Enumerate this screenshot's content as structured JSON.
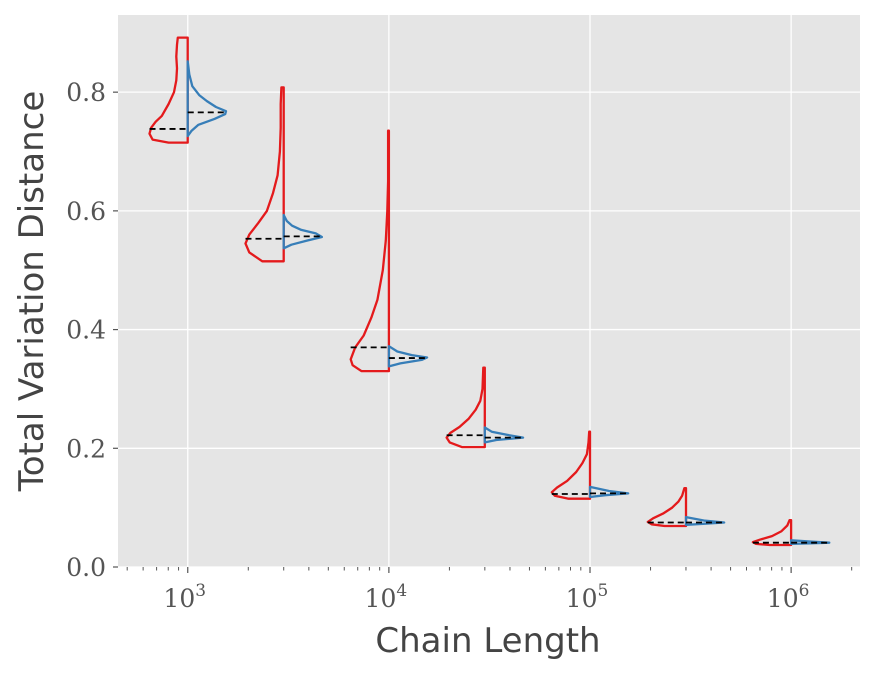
{
  "chart_data": {
    "type": "violin",
    "xlabel": "Chain Length",
    "ylabel": "Total Variation Distance",
    "xscale": "log",
    "xlim": [
      450,
      2200000
    ],
    "ylim": [
      0.0,
      0.93
    ],
    "grid": true,
    "background": "#e5e5e5",
    "colors": {
      "left_violin": "#e41a1c",
      "right_violin": "#377eb8",
      "median_line": "#000000"
    },
    "y_ticks": [
      0.0,
      0.2,
      0.4,
      0.6,
      0.8
    ],
    "y_tick_labels": [
      "0.0",
      "0.2",
      "0.4",
      "0.6",
      "0.8"
    ],
    "x_ticks": [
      1000,
      10000,
      100000,
      1000000
    ],
    "x_tick_labels": [
      {
        "base": "10",
        "exp": "3"
      },
      {
        "base": "10",
        "exp": "4"
      },
      {
        "base": "10",
        "exp": "5"
      },
      {
        "base": "10",
        "exp": "6"
      }
    ],
    "groups": [
      {
        "chain_length": 1000,
        "left": {
          "min": 0.715,
          "max": 0.892,
          "median": 0.738,
          "profile": [
            [
              0.715,
              0.5
            ],
            [
              0.72,
              0.92
            ],
            [
              0.73,
              1.0
            ],
            [
              0.74,
              0.96
            ],
            [
              0.75,
              0.84
            ],
            [
              0.76,
              0.68
            ],
            [
              0.78,
              0.5
            ],
            [
              0.8,
              0.36
            ],
            [
              0.82,
              0.3
            ],
            [
              0.84,
              0.28
            ],
            [
              0.86,
              0.3
            ],
            [
              0.88,
              0.28
            ],
            [
              0.892,
              0.26
            ]
          ]
        },
        "right": {
          "min": 0.726,
          "max": 0.852,
          "median": 0.766,
          "profile": [
            [
              0.726,
              0.0
            ],
            [
              0.735,
              0.1
            ],
            [
              0.745,
              0.28
            ],
            [
              0.755,
              0.7
            ],
            [
              0.763,
              0.98
            ],
            [
              0.768,
              1.0
            ],
            [
              0.775,
              0.74
            ],
            [
              0.785,
              0.5
            ],
            [
              0.795,
              0.3
            ],
            [
              0.81,
              0.12
            ],
            [
              0.83,
              0.04
            ],
            [
              0.852,
              0.0
            ]
          ]
        }
      },
      {
        "chain_length": 3000,
        "left": {
          "min": 0.515,
          "max": 0.808,
          "median": 0.553,
          "profile": [
            [
              0.515,
              0.56
            ],
            [
              0.53,
              0.9
            ],
            [
              0.545,
              1.0
            ],
            [
              0.56,
              0.9
            ],
            [
              0.58,
              0.66
            ],
            [
              0.6,
              0.44
            ],
            [
              0.63,
              0.28
            ],
            [
              0.66,
              0.16
            ],
            [
              0.7,
              0.1
            ],
            [
              0.74,
              0.08
            ],
            [
              0.78,
              0.08
            ],
            [
              0.808,
              0.06
            ]
          ]
        },
        "right": {
          "min": 0.537,
          "max": 0.593,
          "median": 0.557,
          "profile": [
            [
              0.537,
              0.0
            ],
            [
              0.543,
              0.2
            ],
            [
              0.55,
              0.62
            ],
            [
              0.556,
              1.0
            ],
            [
              0.562,
              0.84
            ],
            [
              0.568,
              0.46
            ],
            [
              0.575,
              0.22
            ],
            [
              0.583,
              0.08
            ],
            [
              0.593,
              0.0
            ]
          ]
        }
      },
      {
        "chain_length": 10000,
        "left": {
          "min": 0.33,
          "max": 0.735,
          "median": 0.37,
          "profile": [
            [
              0.33,
              0.72
            ],
            [
              0.34,
              0.95
            ],
            [
              0.35,
              1.0
            ],
            [
              0.37,
              0.88
            ],
            [
              0.39,
              0.66
            ],
            [
              0.42,
              0.46
            ],
            [
              0.45,
              0.3
            ],
            [
              0.5,
              0.16
            ],
            [
              0.55,
              0.08
            ],
            [
              0.6,
              0.04
            ],
            [
              0.65,
              0.02
            ],
            [
              0.7,
              0.02
            ],
            [
              0.735,
              0.02
            ]
          ]
        },
        "right": {
          "min": 0.338,
          "max": 0.372,
          "median": 0.352,
          "profile": [
            [
              0.338,
              0.0
            ],
            [
              0.343,
              0.3
            ],
            [
              0.349,
              0.86
            ],
            [
              0.353,
              1.0
            ],
            [
              0.357,
              0.6
            ],
            [
              0.363,
              0.22
            ],
            [
              0.372,
              0.0
            ]
          ]
        }
      },
      {
        "chain_length": 30000,
        "left": {
          "min": 0.202,
          "max": 0.336,
          "median": 0.222,
          "profile": [
            [
              0.202,
              0.6
            ],
            [
              0.21,
              0.92
            ],
            [
              0.218,
              1.0
            ],
            [
              0.226,
              0.9
            ],
            [
              0.236,
              0.66
            ],
            [
              0.25,
              0.42
            ],
            [
              0.265,
              0.24
            ],
            [
              0.28,
              0.12
            ],
            [
              0.3,
              0.06
            ],
            [
              0.336,
              0.04
            ]
          ]
        },
        "right": {
          "min": 0.21,
          "max": 0.235,
          "median": 0.218,
          "profile": [
            [
              0.21,
              0.0
            ],
            [
              0.214,
              0.3
            ],
            [
              0.218,
              1.0
            ],
            [
              0.222,
              0.64
            ],
            [
              0.228,
              0.18
            ],
            [
              0.235,
              0.0
            ]
          ]
        }
      },
      {
        "chain_length": 100000,
        "left": {
          "min": 0.115,
          "max": 0.228,
          "median": 0.123,
          "profile": [
            [
              0.115,
              0.56
            ],
            [
              0.12,
              0.92
            ],
            [
              0.126,
              1.0
            ],
            [
              0.134,
              0.86
            ],
            [
              0.145,
              0.6
            ],
            [
              0.16,
              0.36
            ],
            [
              0.175,
              0.2
            ],
            [
              0.19,
              0.08
            ],
            [
              0.21,
              0.04
            ],
            [
              0.228,
              0.02
            ]
          ]
        },
        "right": {
          "min": 0.118,
          "max": 0.135,
          "median": 0.124,
          "profile": [
            [
              0.118,
              0.0
            ],
            [
              0.121,
              0.4
            ],
            [
              0.124,
              1.0
            ],
            [
              0.128,
              0.5
            ],
            [
              0.135,
              0.0
            ]
          ]
        }
      },
      {
        "chain_length": 300000,
        "left": {
          "min": 0.069,
          "max": 0.133,
          "median": 0.075,
          "profile": [
            [
              0.069,
              0.56
            ],
            [
              0.072,
              0.9
            ],
            [
              0.076,
              1.0
            ],
            [
              0.082,
              0.86
            ],
            [
              0.09,
              0.6
            ],
            [
              0.1,
              0.36
            ],
            [
              0.11,
              0.2
            ],
            [
              0.12,
              0.1
            ],
            [
              0.133,
              0.04
            ]
          ]
        },
        "right": {
          "min": 0.071,
          "max": 0.084,
          "median": 0.075,
          "profile": [
            [
              0.071,
              0.0
            ],
            [
              0.073,
              0.5
            ],
            [
              0.075,
              1.0
            ],
            [
              0.078,
              0.5
            ],
            [
              0.084,
              0.0
            ]
          ]
        }
      },
      {
        "chain_length": 1000000,
        "left": {
          "min": 0.037,
          "max": 0.079,
          "median": 0.041,
          "profile": [
            [
              0.037,
              0.56
            ],
            [
              0.039,
              0.92
            ],
            [
              0.042,
              1.0
            ],
            [
              0.046,
              0.82
            ],
            [
              0.052,
              0.5
            ],
            [
              0.06,
              0.26
            ],
            [
              0.07,
              0.1
            ],
            [
              0.079,
              0.04
            ]
          ]
        },
        "right": {
          "min": 0.039,
          "max": 0.045,
          "median": 0.041,
          "profile": [
            [
              0.039,
              0.0
            ],
            [
              0.04,
              0.5
            ],
            [
              0.041,
              1.0
            ],
            [
              0.043,
              0.5
            ],
            [
              0.045,
              0.0
            ]
          ]
        }
      }
    ]
  }
}
